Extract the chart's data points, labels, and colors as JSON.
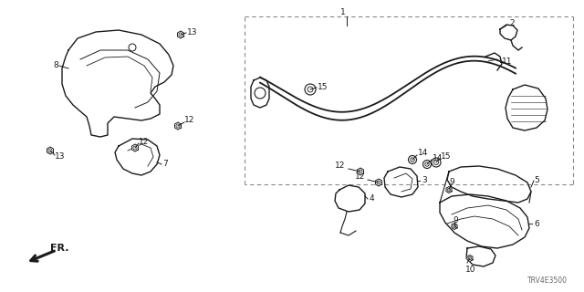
{
  "bg_color": "#ffffff",
  "line_color": "#1a1a1a",
  "part_number_text": "TRV4E3500",
  "fr_label": "FR.",
  "figsize": [
    6.4,
    3.2
  ],
  "dpi": 100
}
